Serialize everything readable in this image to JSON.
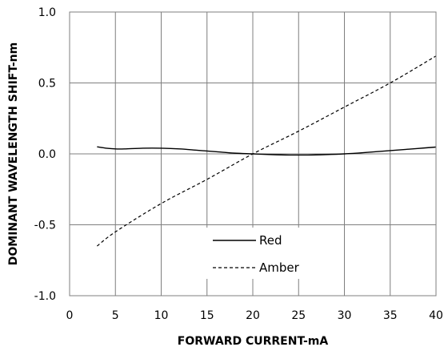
{
  "chart_data": {
    "type": "line",
    "xlabel": "FORWARD CURRENT-mA",
    "ylabel": "DOMINANT WAVELENGTH SHIFT-nm",
    "xlim": [
      0,
      40
    ],
    "ylim": [
      -1.0,
      1.0
    ],
    "x_ticks": [
      "0",
      "5",
      "10",
      "15",
      "20",
      "25",
      "30",
      "35",
      "40"
    ],
    "y_ticks": [
      "1.0",
      "0.5",
      "0.0",
      "-0.5",
      "-1.0"
    ],
    "grid": true,
    "legend_position": "bottom-center",
    "series": [
      {
        "name": "Red",
        "style": "solid",
        "color": "#000000",
        "x": [
          3,
          4,
          5,
          6,
          8,
          10,
          12,
          14,
          16,
          18,
          20,
          22,
          24,
          26,
          28,
          30,
          32,
          34,
          36,
          38,
          40
        ],
        "y": [
          0.05,
          0.04,
          0.035,
          0.035,
          0.04,
          0.04,
          0.035,
          0.025,
          0.015,
          0.005,
          0.0,
          -0.005,
          -0.008,
          -0.008,
          -0.005,
          0.0,
          0.008,
          0.018,
          0.028,
          0.038,
          0.048
        ]
      },
      {
        "name": "Amber",
        "style": "dashed",
        "color": "#000000",
        "x": [
          3,
          5,
          10,
          15,
          20,
          25,
          30,
          35,
          40
        ],
        "y": [
          -0.65,
          -0.55,
          -0.35,
          -0.18,
          0.0,
          0.16,
          0.33,
          0.5,
          0.69
        ]
      }
    ]
  }
}
